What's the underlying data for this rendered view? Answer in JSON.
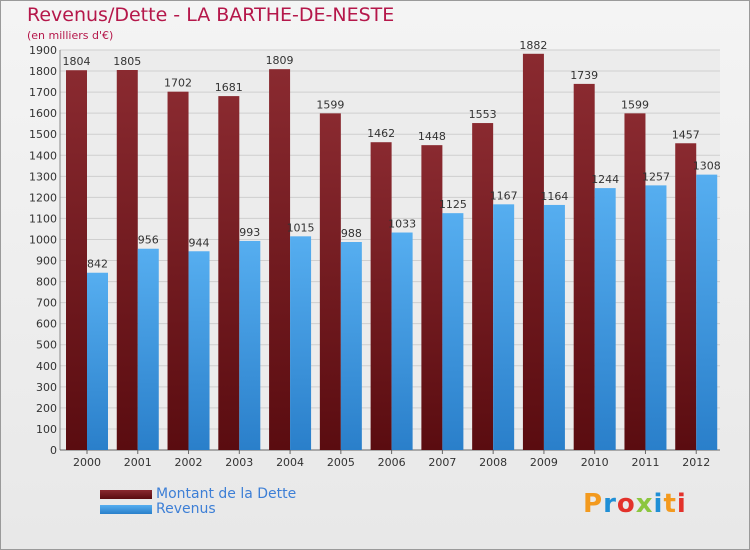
{
  "title": "Revenus/Dette - LA BARTHE-DE-NESTE",
  "subtitle": "(en milliers d'€)",
  "logo": {
    "text": "Proxiti"
  },
  "colors": {
    "dette": "#7a1e24",
    "revenus": "#3c97e0",
    "title": "#b5174a",
    "legend_text": "#3d7fd6"
  },
  "chart_data": {
    "type": "bar",
    "categories": [
      "2000",
      "2001",
      "2002",
      "2003",
      "2004",
      "2005",
      "2006",
      "2007",
      "2008",
      "2009",
      "2010",
      "2011",
      "2012"
    ],
    "series": [
      {
        "name": "Montant de la Dette",
        "values": [
          1804,
          1805,
          1702,
          1681,
          1809,
          1599,
          1462,
          1448,
          1553,
          1882,
          1739,
          1599,
          1457
        ]
      },
      {
        "name": "Revenus",
        "values": [
          842,
          956,
          944,
          993,
          1015,
          988,
          1033,
          1125,
          1167,
          1164,
          1244,
          1257,
          1308
        ]
      }
    ],
    "ylim": [
      0,
      1900
    ],
    "ytick_step": 100,
    "grid": true,
    "legend": "bottom-left"
  }
}
